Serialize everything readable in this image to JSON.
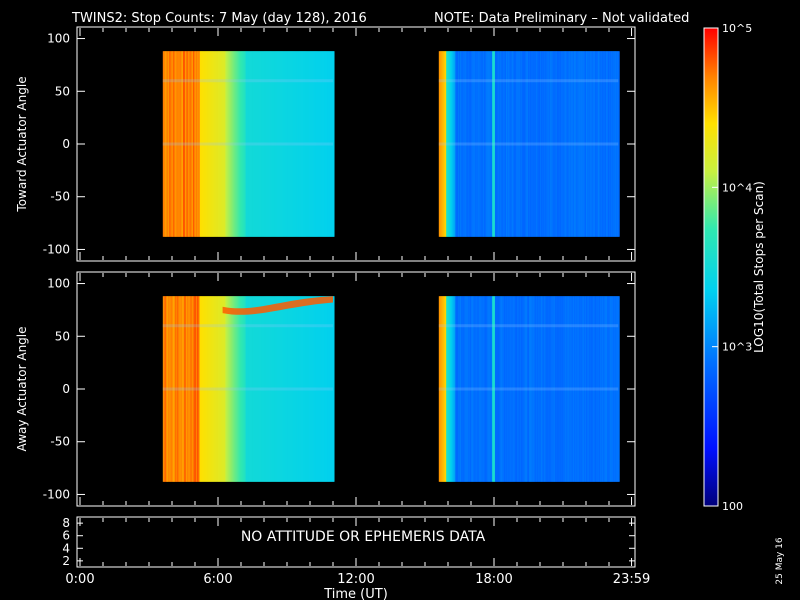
{
  "title": {
    "main": "TWINS2: Stop Counts:  7 May (day 128), 2016",
    "note": "NOTE: Data Preliminary – Not validated",
    "note_color": "#ff2020"
  },
  "chart_data": {
    "type": "heatmap",
    "time_axis": {
      "label": "Time (UT)",
      "range_hours": [
        0,
        24
      ],
      "ticks": [
        {
          "label": "0:00",
          "hour": 0
        },
        {
          "label": "6:00",
          "hour": 6
        },
        {
          "label": "12:00",
          "hour": 12
        },
        {
          "label": "18:00",
          "hour": 18
        },
        {
          "label": "23:59",
          "hour": 23.98
        }
      ]
    },
    "panels": [
      {
        "id": "toward",
        "ylabel": "Toward Actuator Angle",
        "ylim": [
          -110,
          110
        ],
        "yticks": [
          100,
          50,
          0,
          -50,
          -100
        ],
        "angle_range": [
          -88,
          88
        ],
        "data_intervals_hours": [
          [
            3.6,
            11.0
          ],
          [
            15.6,
            23.4
          ]
        ]
      },
      {
        "id": "away",
        "ylabel": "Away Actuator Angle",
        "ylim": [
          -110,
          110
        ],
        "yticks": [
          100,
          50,
          0,
          -50,
          -100
        ],
        "angle_range": [
          -88,
          88
        ],
        "data_intervals_hours": [
          [
            3.6,
            11.0
          ],
          [
            15.6,
            23.4
          ]
        ]
      },
      {
        "id": "attitude",
        "yticks": [
          8,
          6,
          4,
          2
        ],
        "ylim": [
          1.5,
          8.5
        ],
        "message": "NO ATTITUDE OR EPHEMERIS DATA"
      }
    ],
    "colorbar": {
      "label": "LOG10(Total Stops per Scan)",
      "scale": "log",
      "range": [
        100,
        100000
      ],
      "ticks": [
        {
          "value": 100000,
          "label": "10^5"
        },
        {
          "value": 10000,
          "label": "10^4"
        },
        {
          "value": 1000,
          "label": "10^3"
        },
        {
          "value": 100,
          "label": "100"
        }
      ]
    }
  },
  "footer": {
    "date_stamp": "25 May 16"
  }
}
